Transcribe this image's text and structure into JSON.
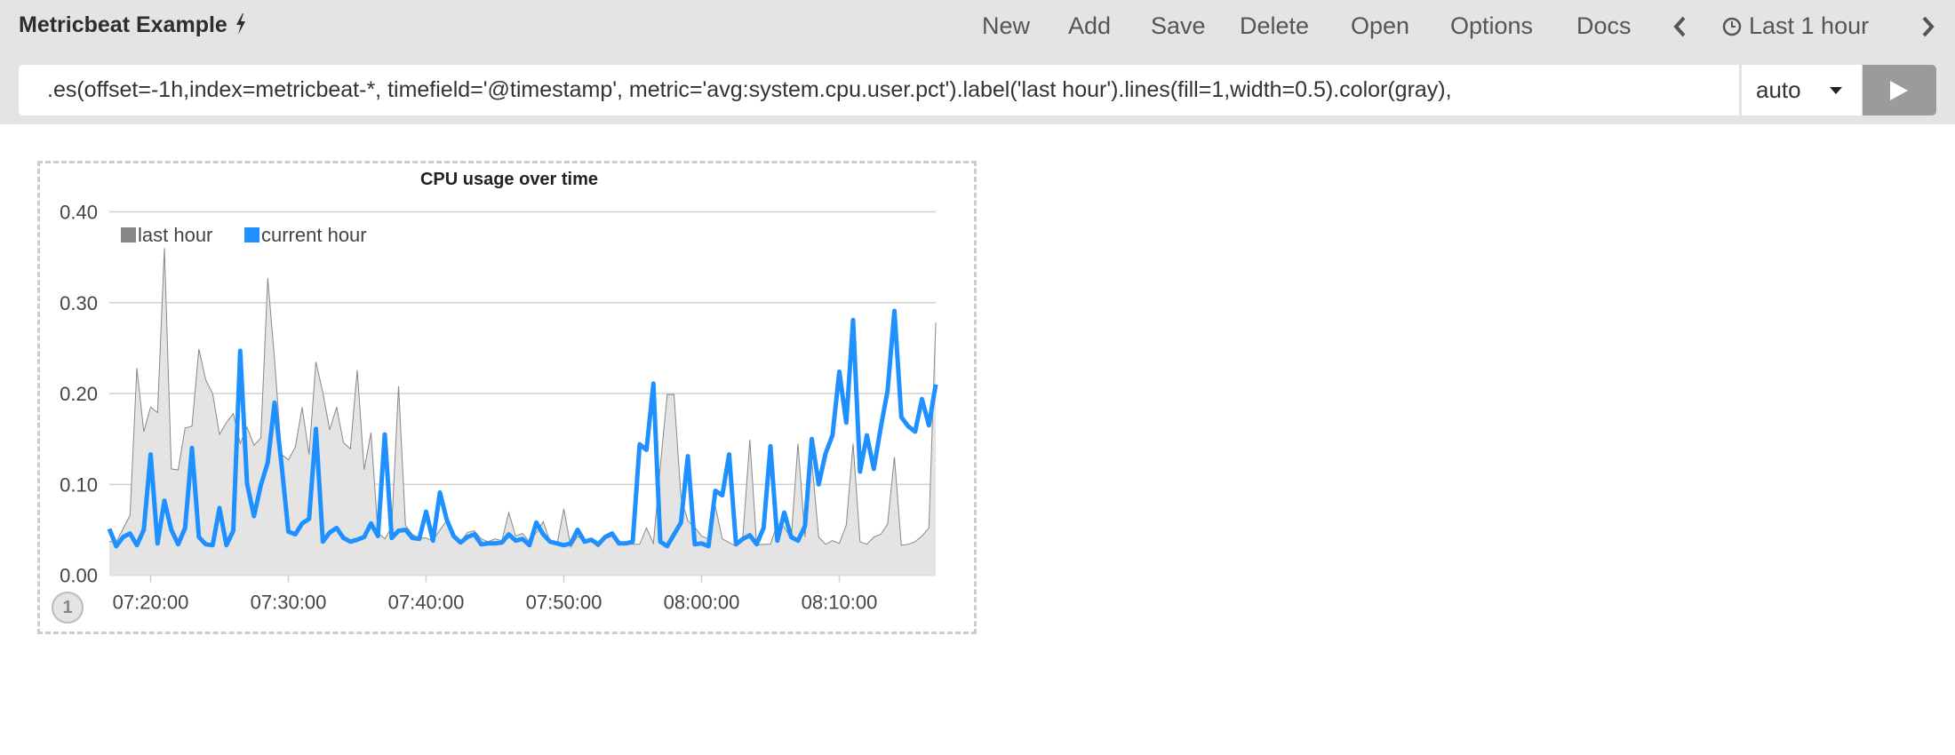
{
  "header": {
    "title": "Metricbeat Example",
    "title_icon": "lightning-bolt-icon",
    "menu": [
      "New",
      "Add",
      "Save",
      "Delete",
      "Open",
      "Options",
      "Docs"
    ],
    "time_prev_icon": "chevron-left-icon",
    "time_icon": "clock-icon",
    "time_range": "Last 1 hour",
    "time_next_icon": "chevron-right-icon"
  },
  "query": {
    "expression": ".es(offset=-1h,index=metricbeat-*, timefield='@timestamp', metric='avg:system.cpu.user.pct').label('last hour').lines(fill=1,width=0.5).color(gray),",
    "interval": "auto",
    "run_icon": "play-icon"
  },
  "sheet": {
    "badge": "1"
  },
  "chart_data": {
    "type": "line",
    "title": "CPU usage over time",
    "xlabel": "",
    "ylabel": "",
    "ylim": [
      0,
      0.4
    ],
    "y_ticks": [
      "0.00",
      "0.10",
      "0.20",
      "0.30",
      "0.40"
    ],
    "x_ticks": [
      "07:20:00",
      "07:30:00",
      "07:40:00",
      "07:50:00",
      "08:00:00",
      "08:10:00"
    ],
    "grid": true,
    "legend": "top-left",
    "colors": {
      "last hour": "#888888",
      "last hour fill": "#e4e4e4",
      "current hour": "#1e90ff"
    },
    "x": [
      "07:17:00",
      "07:17:30",
      "07:18:00",
      "07:18:30",
      "07:19:00",
      "07:19:30",
      "07:20:00",
      "07:20:30",
      "07:21:00",
      "07:21:30",
      "07:22:00",
      "07:22:30",
      "07:23:00",
      "07:23:30",
      "07:24:00",
      "07:24:30",
      "07:25:00",
      "07:25:30",
      "07:26:00",
      "07:26:30",
      "07:27:00",
      "07:27:30",
      "07:28:00",
      "07:28:30",
      "07:29:00",
      "07:29:30",
      "07:30:00",
      "07:30:30",
      "07:31:00",
      "07:31:30",
      "07:32:00",
      "07:32:30",
      "07:33:00",
      "07:33:30",
      "07:34:00",
      "07:34:30",
      "07:35:00",
      "07:35:30",
      "07:36:00",
      "07:36:30",
      "07:37:00",
      "07:37:30",
      "07:38:00",
      "07:38:30",
      "07:39:00",
      "07:39:30",
      "07:40:00",
      "07:40:30",
      "07:41:00",
      "07:41:30",
      "07:42:00",
      "07:42:30",
      "07:43:00",
      "07:43:30",
      "07:44:00",
      "07:44:30",
      "07:45:00",
      "07:45:30",
      "07:46:00",
      "07:46:30",
      "07:47:00",
      "07:47:30",
      "07:48:00",
      "07:48:30",
      "07:49:00",
      "07:49:30",
      "07:50:00",
      "07:50:30",
      "07:51:00",
      "07:51:30",
      "07:52:00",
      "07:52:30",
      "07:53:00",
      "07:53:30",
      "07:54:00",
      "07:54:30",
      "07:55:00",
      "07:55:30",
      "07:56:00",
      "07:56:30",
      "07:57:00",
      "07:57:30",
      "07:58:00",
      "07:58:30",
      "07:59:00",
      "07:59:30",
      "08:00:00",
      "08:00:30",
      "08:01:00",
      "08:01:30",
      "08:02:00",
      "08:02:30",
      "08:03:00",
      "08:03:30",
      "08:04:00",
      "08:04:30",
      "08:05:00",
      "08:05:30",
      "08:06:00",
      "08:06:30",
      "08:07:00",
      "08:07:30",
      "08:08:00",
      "08:08:30",
      "08:09:00",
      "08:09:30",
      "08:10:00",
      "08:10:30",
      "08:11:00",
      "08:11:30",
      "08:12:00",
      "08:12:30",
      "08:13:00",
      "08:13:30",
      "08:14:00",
      "08:14:30",
      "08:15:00",
      "08:15:30",
      "08:16:00",
      "08:16:30",
      "08:17:00"
    ],
    "series": [
      {
        "name": "last hour",
        "style": "area",
        "values": [
          0.037,
          0.037,
          0.051,
          0.066,
          0.228,
          0.158,
          0.185,
          0.179,
          0.36,
          0.117,
          0.116,
          0.162,
          0.164,
          0.249,
          0.215,
          0.2,
          0.155,
          0.168,
          0.178,
          0.145,
          0.163,
          0.143,
          0.151,
          0.327,
          0.237,
          0.133,
          0.127,
          0.141,
          0.185,
          0.133,
          0.235,
          0.201,
          0.16,
          0.185,
          0.146,
          0.139,
          0.226,
          0.116,
          0.157,
          0.047,
          0.04,
          0.053,
          0.208,
          0.055,
          0.045,
          0.041,
          0.041,
          0.038,
          0.05,
          0.06,
          0.043,
          0.037,
          0.047,
          0.049,
          0.04,
          0.037,
          0.04,
          0.038,
          0.069,
          0.043,
          0.046,
          0.037,
          0.047,
          0.059,
          0.037,
          0.034,
          0.073,
          0.031,
          0.043,
          0.037,
          0.037,
          0.031,
          0.04,
          0.043,
          0.037,
          0.034,
          0.034,
          0.034,
          0.052,
          0.035,
          0.119,
          0.199,
          0.199,
          0.086,
          0.06,
          0.053,
          0.043,
          0.04,
          0.076,
          0.04,
          0.036,
          0.032,
          0.043,
          0.149,
          0.033,
          0.034,
          0.034,
          0.057,
          0.053,
          0.04,
          0.145,
          0.042,
          0.126,
          0.042,
          0.034,
          0.038,
          0.035,
          0.055,
          0.145,
          0.037,
          0.034,
          0.042,
          0.045,
          0.056,
          0.13,
          0.033,
          0.034,
          0.037,
          0.043,
          0.052,
          0.278
        ]
      },
      {
        "name": "current hour",
        "style": "line",
        "values": [
          0.051,
          0.032,
          0.042,
          0.046,
          0.033,
          0.05,
          0.133,
          0.035,
          0.082,
          0.05,
          0.034,
          0.052,
          0.14,
          0.042,
          0.034,
          0.033,
          0.074,
          0.033,
          0.049,
          0.247,
          0.101,
          0.065,
          0.099,
          0.124,
          0.19,
          0.122,
          0.048,
          0.045,
          0.057,
          0.062,
          0.161,
          0.037,
          0.047,
          0.052,
          0.041,
          0.037,
          0.039,
          0.042,
          0.057,
          0.043,
          0.155,
          0.041,
          0.049,
          0.05,
          0.041,
          0.04,
          0.07,
          0.038,
          0.091,
          0.061,
          0.043,
          0.036,
          0.042,
          0.045,
          0.034,
          0.035,
          0.035,
          0.036,
          0.045,
          0.038,
          0.04,
          0.033,
          0.058,
          0.045,
          0.037,
          0.035,
          0.033,
          0.035,
          0.05,
          0.037,
          0.039,
          0.034,
          0.042,
          0.046,
          0.035,
          0.035,
          0.037,
          0.144,
          0.138,
          0.211,
          0.037,
          0.032,
          0.045,
          0.058,
          0.131,
          0.034,
          0.035,
          0.032,
          0.093,
          0.088,
          0.133,
          0.034,
          0.04,
          0.044,
          0.034,
          0.052,
          0.142,
          0.038,
          0.069,
          0.042,
          0.038,
          0.054,
          0.15,
          0.1,
          0.134,
          0.154,
          0.224,
          0.168,
          0.281,
          0.114,
          0.154,
          0.117,
          0.162,
          0.203,
          0.291,
          0.174,
          0.164,
          0.158,
          0.194,
          0.165,
          0.21
        ]
      }
    ]
  }
}
